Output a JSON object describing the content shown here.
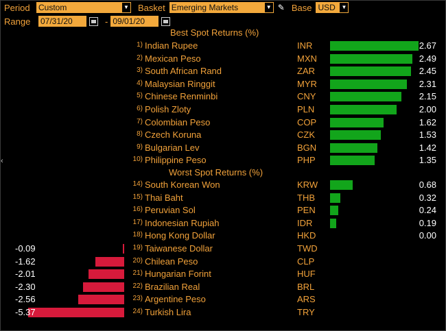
{
  "controls": {
    "period_label": "Period",
    "period_value": "Custom",
    "basket_label": "Basket",
    "basket_value": "Emerging Markets",
    "base_label": "Base",
    "base_value": "USD",
    "range_label": "Range",
    "range_start": "07/31/20",
    "range_sep": "-",
    "range_end": "09/01/20"
  },
  "best_title": "Best Spot Returns (%)",
  "worst_title": "Worst Spot Returns (%)",
  "best": [
    {
      "rank": "1)",
      "name": "Indian Rupee",
      "code": "INR",
      "value": "2.67",
      "v": 2.67
    },
    {
      "rank": "2)",
      "name": "Mexican Peso",
      "code": "MXN",
      "value": "2.49",
      "v": 2.49
    },
    {
      "rank": "3)",
      "name": "South African Rand",
      "code": "ZAR",
      "value": "2.45",
      "v": 2.45
    },
    {
      "rank": "4)",
      "name": "Malaysian Ringgit",
      "code": "MYR",
      "value": "2.31",
      "v": 2.31
    },
    {
      "rank": "5)",
      "name": "Chinese Renminbi",
      "code": "CNY",
      "value": "2.15",
      "v": 2.15
    },
    {
      "rank": "6)",
      "name": "Polish Zloty",
      "code": "PLN",
      "value": "2.00",
      "v": 2.0
    },
    {
      "rank": "7)",
      "name": "Colombian Peso",
      "code": "COP",
      "value": "1.62",
      "v": 1.62
    },
    {
      "rank": "8)",
      "name": "Czech Koruna",
      "code": "CZK",
      "value": "1.53",
      "v": 1.53
    },
    {
      "rank": "9)",
      "name": "Bulgarian Lev",
      "code": "BGN",
      "value": "1.42",
      "v": 1.42
    },
    {
      "rank": "10)",
      "name": "Philippine Peso",
      "code": "PHP",
      "value": "1.35",
      "v": 1.35
    }
  ],
  "worst": [
    {
      "rank": "14)",
      "name": "South Korean Won",
      "code": "KRW",
      "value": "0.68",
      "v": 0.68
    },
    {
      "rank": "15)",
      "name": "Thai Baht",
      "code": "THB",
      "value": "0.32",
      "v": 0.32
    },
    {
      "rank": "16)",
      "name": "Peruvian Sol",
      "code": "PEN",
      "value": "0.24",
      "v": 0.24
    },
    {
      "rank": "17)",
      "name": "Indonesian Rupiah",
      "code": "IDR",
      "value": "0.19",
      "v": 0.19
    },
    {
      "rank": "18)",
      "name": "Hong Kong Dollar",
      "code": "HKD",
      "value": "0.00",
      "v": 0.0
    },
    {
      "rank": "19)",
      "name": "Taiwanese Dollar",
      "code": "TWD",
      "value": "-0.09",
      "v": -0.09
    },
    {
      "rank": "20)",
      "name": "Chilean Peso",
      "code": "CLP",
      "value": "-1.62",
      "v": -1.62
    },
    {
      "rank": "21)",
      "name": "Hungarian Forint",
      "code": "HUF",
      "value": "-2.01",
      "v": -2.01
    },
    {
      "rank": "22)",
      "name": "Brazilian Real",
      "code": "BRL",
      "value": "-2.30",
      "v": -2.3
    },
    {
      "rank": "23)",
      "name": "Argentine Peso",
      "code": "ARS",
      "value": "-2.56",
      "v": -2.56
    },
    {
      "rank": "24)",
      "name": "Turkish Lira",
      "code": "TRY",
      "value": "-5.37",
      "v": -5.37
    }
  ],
  "colors": {
    "positive": "#12a51b",
    "negative": "#d71a3b",
    "accent": "#f2a23a"
  },
  "icons": {
    "edit": "pencil-icon",
    "calendar": "calendar-icon",
    "dropdown": "chevron-down-icon",
    "left_edge": "chevron-left-icon"
  }
}
